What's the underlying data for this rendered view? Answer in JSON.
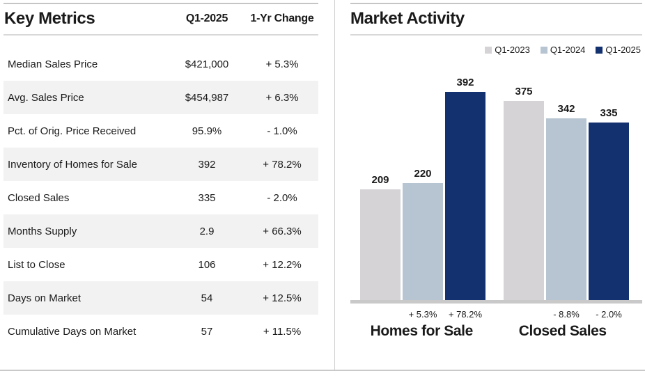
{
  "key_metrics": {
    "title": "Key Metrics",
    "col_value": "Q1-2025",
    "col_change": "1-Yr Change",
    "rows": [
      {
        "label": "Median Sales Price",
        "value": "$421,000",
        "change": "+ 5.3%"
      },
      {
        "label": "Avg. Sales Price",
        "value": "$454,987",
        "change": "+ 6.3%"
      },
      {
        "label": "Pct. of Orig. Price Received",
        "value": "95.9%",
        "change": "- 1.0%"
      },
      {
        "label": "Inventory of Homes for Sale",
        "value": "392",
        "change": "+ 78.2%"
      },
      {
        "label": "Closed Sales",
        "value": "335",
        "change": "- 2.0%"
      },
      {
        "label": "Months Supply",
        "value": "2.9",
        "change": "+ 66.3%"
      },
      {
        "label": "List to Close",
        "value": "106",
        "change": "+ 12.2%"
      },
      {
        "label": "Days on Market",
        "value": "54",
        "change": "+ 12.5%"
      },
      {
        "label": "Cumulative Days on Market",
        "value": "57",
        "change": "+ 11.5%"
      }
    ]
  },
  "market_activity": {
    "title": "Market Activity"
  },
  "chart_data": {
    "type": "bar",
    "title": "Market Activity",
    "categories": [
      "Homes for Sale",
      "Closed Sales"
    ],
    "series": [
      {
        "name": "Q1-2023",
        "color": "#d5d3d6",
        "values": [
          209,
          375
        ]
      },
      {
        "name": "Q1-2024",
        "color": "#b7c5d2",
        "values": [
          220,
          342
        ]
      },
      {
        "name": "Q1-2025",
        "color": "#14316f",
        "values": [
          392,
          335
        ]
      }
    ],
    "change_labels": [
      [
        "",
        "+ 5.3%",
        "+ 78.2%"
      ],
      [
        "",
        "- 8.8%",
        "- 2.0%"
      ]
    ],
    "value_labels_shown": true,
    "ylim": [
      0,
      446
    ],
    "grid": false,
    "legend_position": "top-right"
  },
  "colors": {
    "bar_q1_2023": "#d5d3d6",
    "bar_q1_2024": "#b7c5d2",
    "bar_q1_2025": "#14316f",
    "row_alt": "#f2f2f2",
    "rule_gray": "#c9c9c9",
    "text": "#1a1a1a"
  }
}
